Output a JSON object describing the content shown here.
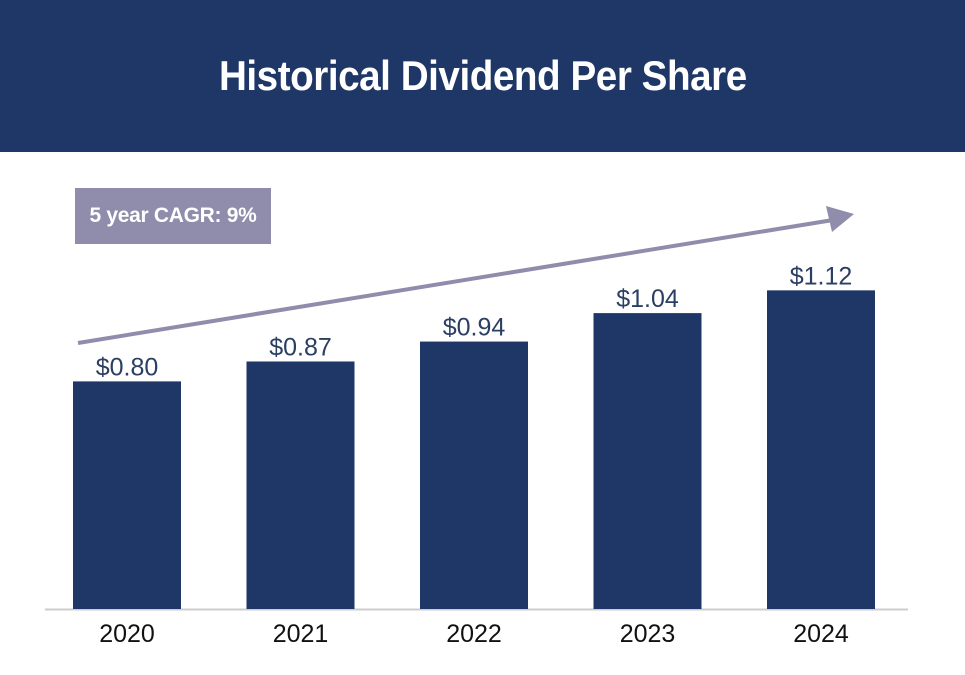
{
  "header": {
    "title": "Historical Dividend Per Share"
  },
  "annotation": {
    "cagr_label": "5 year CAGR: 9%"
  },
  "colors": {
    "header_bg": "#1e3766",
    "bar": "#1e3766",
    "arrow": "#908cab",
    "axis": "#cccccc"
  },
  "chart_data": {
    "type": "bar",
    "title": "Historical Dividend Per Share",
    "categories": [
      "2020",
      "2021",
      "2022",
      "2023",
      "2024"
    ],
    "values": [
      0.8,
      0.87,
      0.94,
      1.04,
      1.12
    ],
    "data_labels": [
      "$0.80",
      "$0.87",
      "$0.94",
      "$1.04",
      "$1.12"
    ],
    "xlabel": "",
    "ylabel": "",
    "ylim": [
      0,
      1.42
    ],
    "grid": false,
    "legend": "none",
    "annotations": [
      "5 year CAGR: 9%"
    ]
  }
}
